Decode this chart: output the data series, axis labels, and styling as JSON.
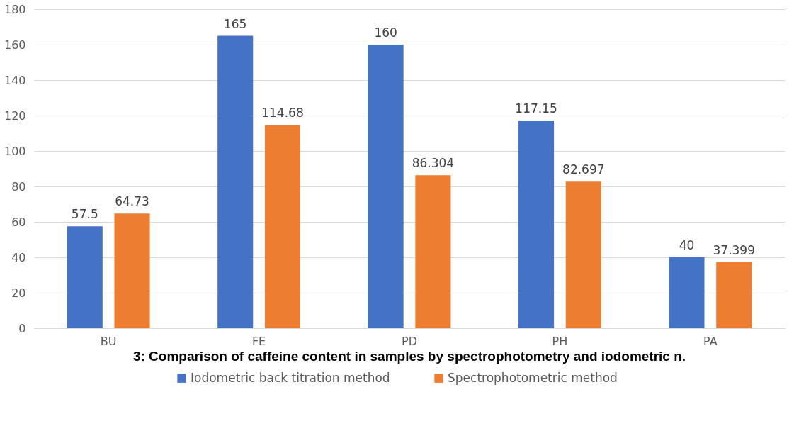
{
  "chart_data": {
    "type": "bar",
    "categories": [
      "BU",
      "FE",
      "PD",
      "PH",
      "PA"
    ],
    "series": [
      {
        "name": "Iodometric back titration method",
        "color": "#4472c4",
        "values": [
          57.5,
          165,
          160,
          117.15,
          40
        ]
      },
      {
        "name": "Spectrophotometric method",
        "color": "#ed7d31",
        "values": [
          64.73,
          114.68,
          86.304,
          82.697,
          37.399
        ]
      }
    ],
    "ylim": [
      0,
      180
    ],
    "yticks": [
      0,
      20,
      40,
      60,
      80,
      100,
      120,
      140,
      160,
      180
    ],
    "grid": "y",
    "legend": "bottom",
    "data_labels": true,
    "annotations": [
      "3: Comparison of caffeine content in samples by spectrophotometry and iodometric n."
    ]
  }
}
